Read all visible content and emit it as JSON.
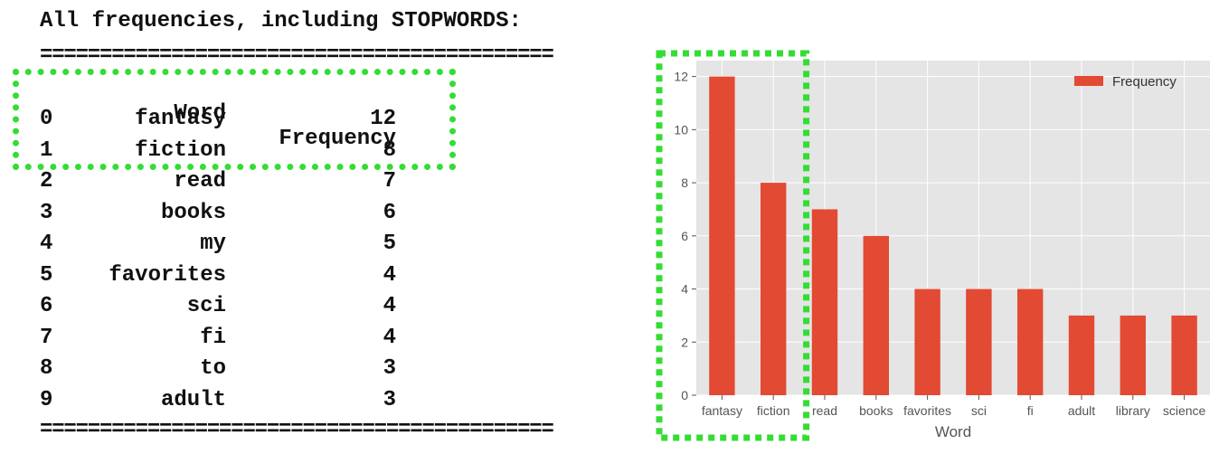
{
  "console": {
    "heading": "All frequencies, including STOPWORDS:",
    "separator": "===========================================",
    "columns": {
      "word": "Word",
      "frequency": "Frequency"
    },
    "rows": [
      {
        "idx": "0",
        "word": "fantasy",
        "freq": "12"
      },
      {
        "idx": "1",
        "word": "fiction",
        "freq": "8"
      },
      {
        "idx": "2",
        "word": "read",
        "freq": "7"
      },
      {
        "idx": "3",
        "word": "books",
        "freq": "6"
      },
      {
        "idx": "4",
        "word": "my",
        "freq": "5"
      },
      {
        "idx": "5",
        "word": "favorites",
        "freq": "4"
      },
      {
        "idx": "6",
        "word": "sci",
        "freq": "4"
      },
      {
        "idx": "7",
        "word": "fi",
        "freq": "4"
      },
      {
        "idx": "8",
        "word": "to",
        "freq": "3"
      },
      {
        "idx": "9",
        "word": "adult",
        "freq": "3"
      }
    ]
  },
  "chart_data": {
    "type": "bar",
    "categories": [
      "fantasy",
      "fiction",
      "read",
      "books",
      "favorites",
      "sci",
      "fi",
      "adult",
      "library",
      "science"
    ],
    "series": [
      {
        "name": "Frequency",
        "values": [
          12,
          8,
          7,
          6,
          4,
          4,
          4,
          3,
          3,
          3
        ]
      }
    ],
    "xlabel": "Word",
    "ylabel": "",
    "ylim": [
      0,
      12.6
    ],
    "yticks": [
      0,
      2,
      4,
      6,
      8,
      10,
      12
    ],
    "grid": true,
    "legend": "top-right",
    "colors": {
      "bar": "#E24A33",
      "background": "#E5E5E5",
      "grid": "#FFFFFF",
      "highlight": "#33DD33"
    }
  }
}
